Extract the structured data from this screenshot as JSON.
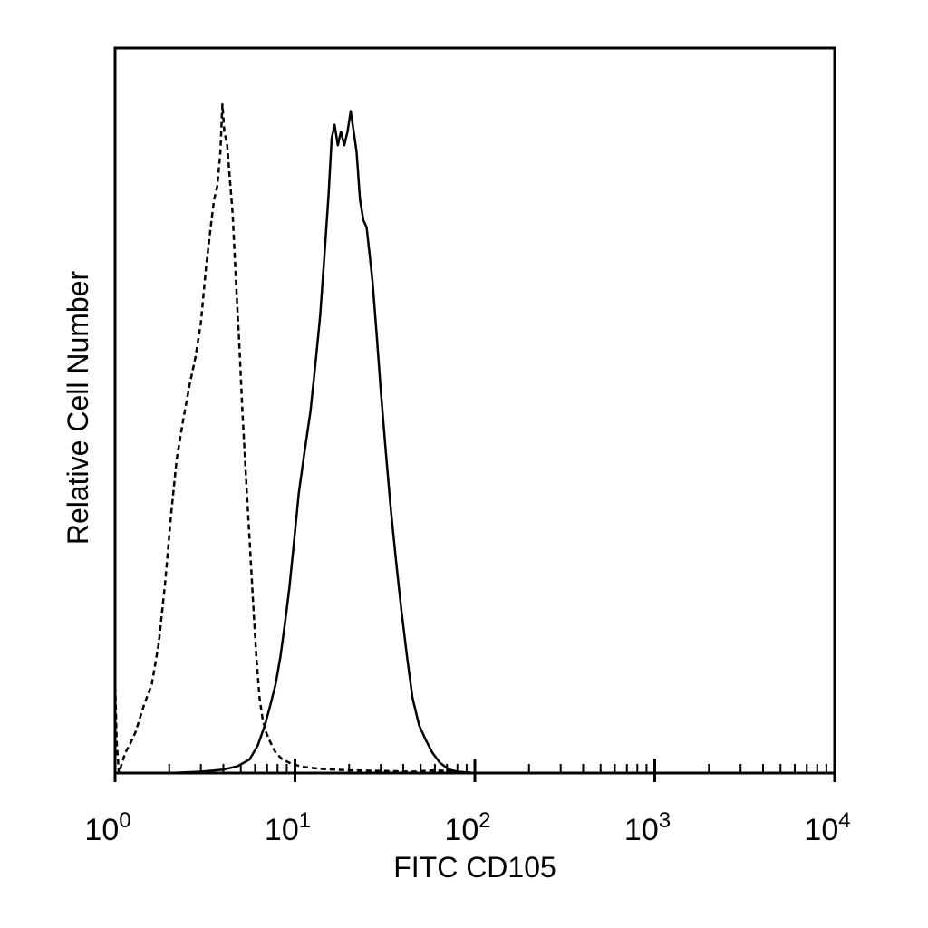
{
  "chart_data": {
    "type": "line",
    "title": "",
    "xlabel": "FITC CD105",
    "ylabel": "Relative Cell Number",
    "x_scale": "log",
    "xlim": [
      1,
      10000
    ],
    "ylim": [
      0,
      1
    ],
    "grid": false,
    "legend": "none",
    "x_ticks": [
      {
        "base": "10",
        "exp": "0",
        "value": 1
      },
      {
        "base": "10",
        "exp": "1",
        "value": 10
      },
      {
        "base": "10",
        "exp": "2",
        "value": 100
      },
      {
        "base": "10",
        "exp": "3",
        "value": 1000
      },
      {
        "base": "10",
        "exp": "4",
        "value": 10000
      }
    ],
    "series": [
      {
        "style": "dashed",
        "color": "#000000",
        "x": [
          1.0,
          1.02,
          1.05,
          1.09,
          1.14,
          1.2,
          1.3,
          1.45,
          1.6,
          1.75,
          1.9,
          2.05,
          2.2,
          2.4,
          2.6,
          2.8,
          3.0,
          3.2,
          3.4,
          3.55,
          3.7,
          3.85,
          3.95,
          4.05,
          4.2,
          4.35,
          4.5,
          4.7,
          4.9,
          5.1,
          5.35,
          5.6,
          5.85,
          6.1,
          6.35,
          6.6,
          6.9,
          7.3,
          7.8,
          8.5,
          9.5,
          11,
          14,
          20,
          30,
          45,
          60,
          80,
          100
        ],
        "y": [
          0.14,
          0.0475,
          0.0,
          0.014,
          0.03,
          0.04,
          0.06,
          0.1,
          0.13,
          0.19,
          0.28,
          0.38,
          0.46,
          0.52,
          0.57,
          0.61,
          0.66,
          0.74,
          0.8,
          0.84,
          0.86,
          0.91,
          0.98,
          0.94,
          0.92,
          0.87,
          0.82,
          0.72,
          0.63,
          0.53,
          0.43,
          0.34,
          0.25,
          0.17,
          0.11,
          0.08,
          0.06,
          0.045,
          0.03,
          0.02,
          0.014,
          0.009,
          0.006,
          0.004,
          0.003,
          0.002,
          0.004,
          0.002,
          0.0
        ]
      },
      {
        "style": "solid",
        "color": "#000000",
        "x": [
          1.0,
          2.0,
          3.0,
          4.0,
          4.8,
          5.6,
          6.2,
          6.8,
          7.3,
          7.8,
          8.3,
          8.8,
          9.3,
          9.8,
          10.5,
          11.3,
          12.2,
          13.0,
          13.8,
          14.6,
          15.4,
          16.0,
          16.6,
          17.3,
          18.0,
          18.8,
          19.6,
          20.4,
          21.2,
          22.0,
          23.0,
          24.0,
          25.0,
          26.0,
          27.0,
          28.5,
          30.0,
          32.0,
          34.0,
          36.5,
          39.0,
          42.0,
          45.0,
          49.0,
          53.0,
          58.0,
          64.0,
          72.0,
          80.0,
          100,
          10000
        ],
        "y": [
          0.0,
          0.0,
          0.002,
          0.005,
          0.01,
          0.02,
          0.04,
          0.07,
          0.1,
          0.13,
          0.17,
          0.22,
          0.27,
          0.33,
          0.41,
          0.47,
          0.53,
          0.6,
          0.67,
          0.76,
          0.85,
          0.93,
          0.95,
          0.92,
          0.94,
          0.92,
          0.94,
          0.97,
          0.94,
          0.91,
          0.84,
          0.81,
          0.8,
          0.76,
          0.72,
          0.64,
          0.56,
          0.47,
          0.39,
          0.31,
          0.24,
          0.17,
          0.11,
          0.07,
          0.05,
          0.03,
          0.015,
          0.005,
          0.002,
          0.0,
          0.0
        ]
      }
    ]
  }
}
